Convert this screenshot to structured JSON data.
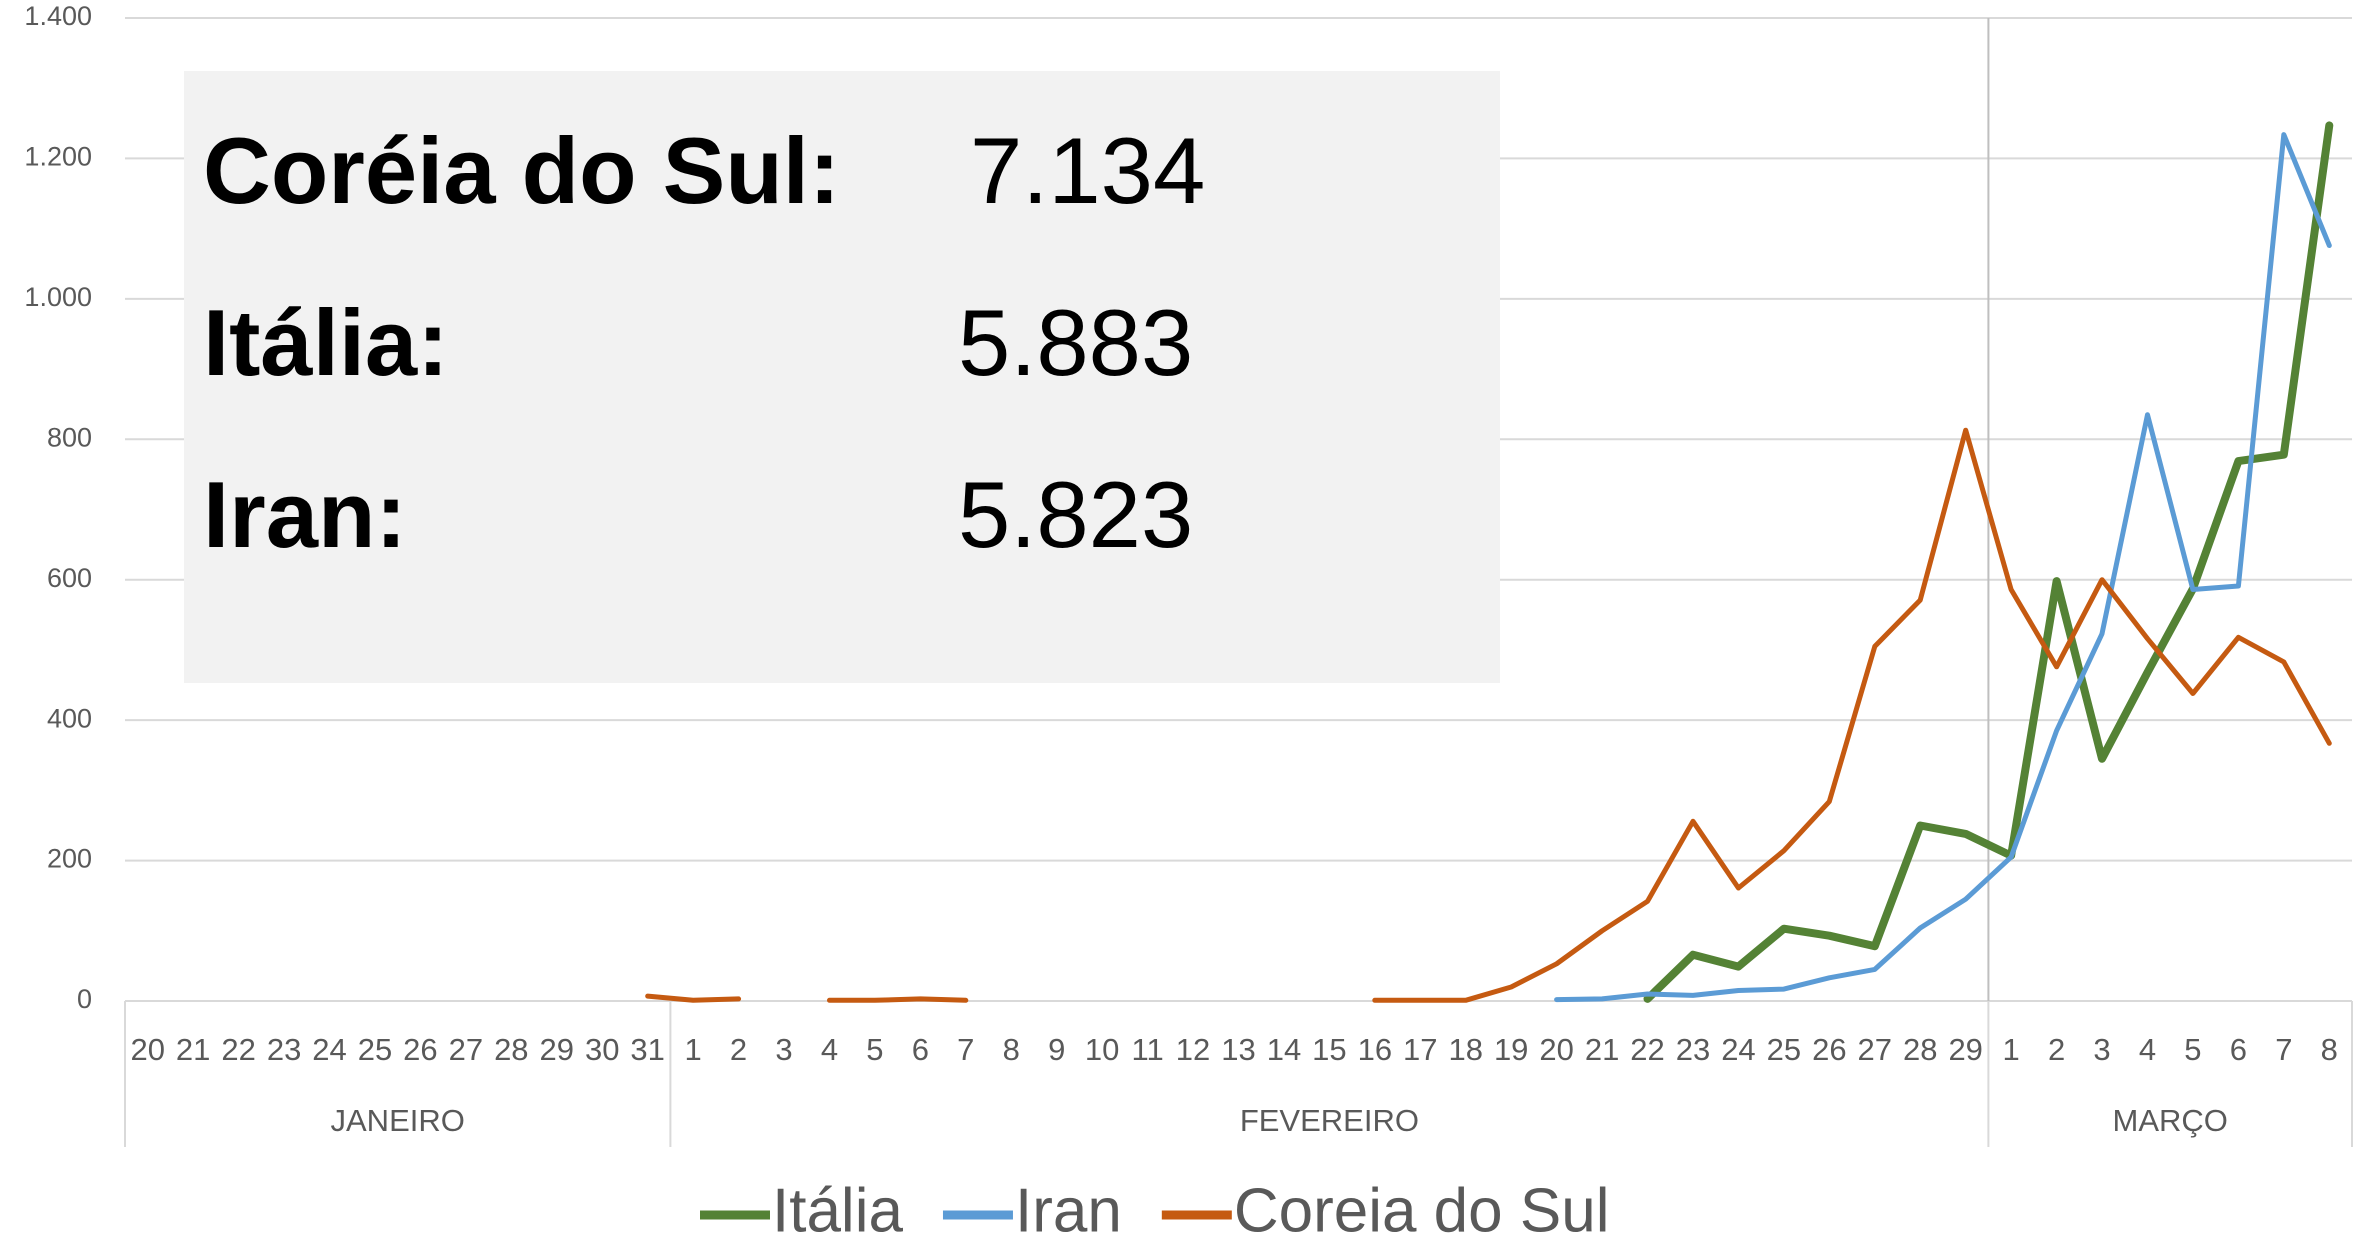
{
  "chart_data": {
    "type": "line",
    "categories": [
      "20",
      "21",
      "22",
      "23",
      "24",
      "25",
      "26",
      "27",
      "28",
      "29",
      "30",
      "31",
      "1",
      "2",
      "3",
      "4",
      "5",
      "6",
      "7",
      "8",
      "9",
      "10",
      "11",
      "12",
      "13",
      "14",
      "15",
      "16",
      "17",
      "18",
      "19",
      "20",
      "21",
      "22",
      "23",
      "24",
      "25",
      "26",
      "27",
      "28",
      "29",
      "1",
      "2",
      "3",
      "4",
      "5",
      "6",
      "7",
      "8"
    ],
    "category_groups": [
      "JANEIRO",
      "JANEIRO",
      "JANEIRO",
      "JANEIRO",
      "JANEIRO",
      "JANEIRO",
      "JANEIRO",
      "JANEIRO",
      "JANEIRO",
      "JANEIRO",
      "JANEIRO",
      "JANEIRO",
      "FEVEREIRO",
      "FEVEREIRO",
      "FEVEREIRO",
      "FEVEREIRO",
      "FEVEREIRO",
      "FEVEREIRO",
      "FEVEREIRO",
      "FEVEREIRO",
      "FEVEREIRO",
      "FEVEREIRO",
      "FEVEREIRO",
      "FEVEREIRO",
      "FEVEREIRO",
      "FEVEREIRO",
      "FEVEREIRO",
      "FEVEREIRO",
      "FEVEREIRO",
      "FEVEREIRO",
      "FEVEREIRO",
      "FEVEREIRO",
      "FEVEREIRO",
      "FEVEREIRO",
      "FEVEREIRO",
      "FEVEREIRO",
      "FEVEREIRO",
      "FEVEREIRO",
      "FEVEREIRO",
      "FEVEREIRO",
      "FEVEREIRO",
      "MARÇO",
      "MARÇO",
      "MARÇO",
      "MARÇO",
      "MARÇO",
      "MARÇO",
      "MARÇO",
      "MARÇO"
    ],
    "series": [
      {
        "name": "Itália",
        "color": "#548235",
        "width": 8,
        "values": [
          null,
          null,
          null,
          null,
          null,
          null,
          null,
          null,
          null,
          null,
          null,
          null,
          null,
          null,
          null,
          null,
          null,
          null,
          null,
          null,
          null,
          null,
          null,
          null,
          null,
          null,
          null,
          null,
          null,
          null,
          null,
          null,
          null,
          3,
          66,
          49,
          103,
          93,
          78,
          250,
          238,
          207,
          598,
          345,
          468,
          587,
          769,
          778,
          1247
        ]
      },
      {
        "name": "Iran",
        "color": "#5b9bd5",
        "width": 5,
        "values": [
          null,
          null,
          null,
          null,
          null,
          null,
          null,
          null,
          null,
          null,
          null,
          null,
          null,
          null,
          null,
          null,
          null,
          null,
          null,
          null,
          null,
          null,
          null,
          null,
          null,
          null,
          null,
          null,
          null,
          null,
          null,
          2,
          3,
          10,
          8,
          15,
          17,
          33,
          45,
          104,
          145,
          205,
          385,
          523,
          835,
          586,
          591,
          1234,
          1076
        ]
      },
      {
        "name": "Coreia do Sul",
        "color": "#c55a11",
        "width": 5,
        "values": [
          null,
          null,
          null,
          null,
          null,
          null,
          null,
          null,
          null,
          null,
          null,
          7,
          1,
          3,
          null,
          1,
          1,
          3,
          1,
          null,
          null,
          null,
          null,
          null,
          null,
          null,
          null,
          1,
          1,
          1,
          20,
          53,
          100,
          142,
          256,
          161,
          214,
          284,
          505,
          571,
          813,
          586,
          476,
          600,
          516,
          438,
          518,
          483,
          367
        ]
      }
    ],
    "ylim": [
      0,
      1400
    ],
    "yticks": [
      0,
      200,
      400,
      600,
      800,
      {
        "value": 1000,
        "label": "1.000"
      },
      {
        "value": 1200,
        "label": "1.200"
      },
      {
        "value": 1400,
        "label": "1.400"
      }
    ],
    "grid": true,
    "legend": "bottom",
    "annotations": [
      {
        "label": "Coréia do Sul:",
        "value": "7.134"
      },
      {
        "label": "Itália:",
        "value": "5.883"
      },
      {
        "label": "Iran:",
        "value": "5.823"
      }
    ]
  }
}
